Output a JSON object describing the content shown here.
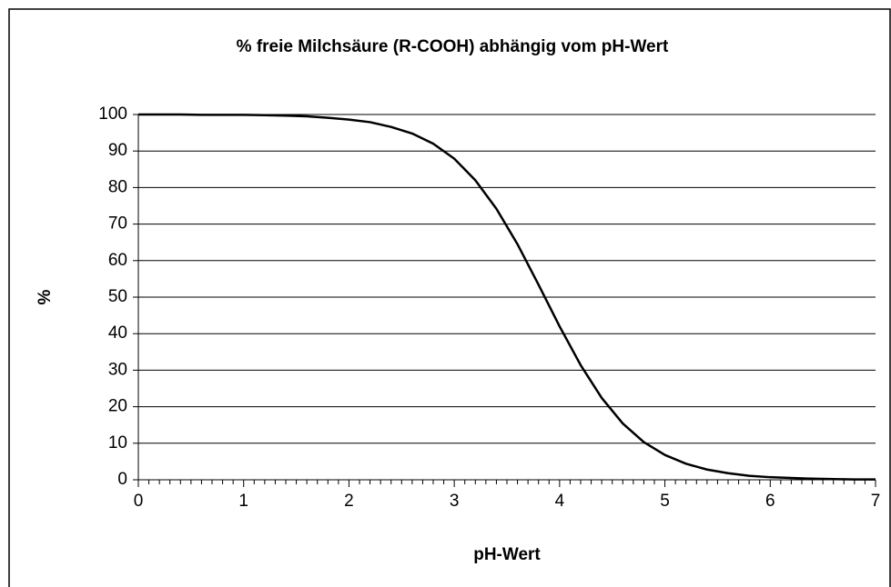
{
  "chart_data": {
    "type": "line",
    "title": "% freie Milchsäure (R-COOH) abhängig vom pH-Wert",
    "x_label": "pH-Wert",
    "y_label": "%",
    "x": [
      0,
      0.2,
      0.4,
      0.6,
      0.8,
      1.0,
      1.2,
      1.4,
      1.6,
      1.8,
      2.0,
      2.2,
      2.4,
      2.6,
      2.8,
      3.0,
      3.2,
      3.4,
      3.6,
      3.8,
      4.0,
      4.2,
      4.4,
      4.6,
      4.8,
      5.0,
      5.2,
      5.4,
      5.6,
      5.8,
      6.0,
      6.2,
      6.4,
      6.6,
      6.8,
      7.0
    ],
    "series": [
      {
        "name": "% freie Milchsäure",
        "color": "#000000",
        "values": [
          100.0,
          100.0,
          100.0,
          99.9,
          99.9,
          99.9,
          99.8,
          99.7,
          99.5,
          99.1,
          98.6,
          97.9,
          96.6,
          94.8,
          92.0,
          87.9,
          82.0,
          74.2,
          64.5,
          53.4,
          42.0,
          31.4,
          22.4,
          15.4,
          10.3,
          6.8,
          4.4,
          2.8,
          1.8,
          1.1,
          0.7,
          0.5,
          0.3,
          0.2,
          0.1,
          0.1
        ]
      }
    ],
    "xlim": [
      0,
      7
    ],
    "xticks": [
      0,
      1,
      2,
      3,
      4,
      5,
      6,
      7
    ],
    "ylim": [
      0,
      100
    ],
    "yticks": [
      0,
      10,
      20,
      30,
      40,
      50,
      60,
      70,
      80,
      90,
      100
    ],
    "grid": true
  }
}
